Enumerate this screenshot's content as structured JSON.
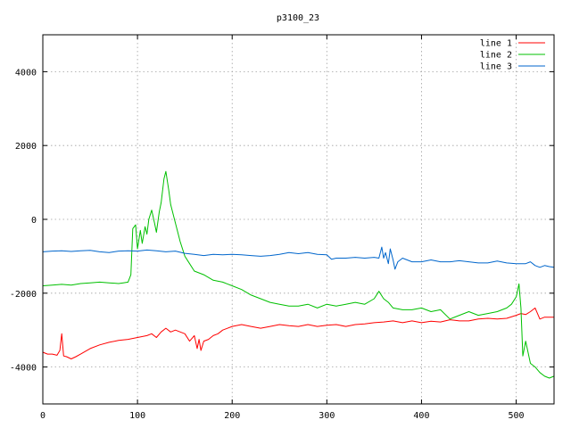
{
  "chart_data": {
    "type": "line",
    "title": "p3100_23",
    "xlabel": "",
    "ylabel": "",
    "xlim": [
      0,
      540
    ],
    "ylim": [
      -5000,
      5000
    ],
    "xticks": [
      0,
      100,
      200,
      300,
      400,
      500
    ],
    "yticks": [
      -4000,
      -2000,
      0,
      2000,
      4000
    ],
    "grid": true,
    "legend_position": "top-right",
    "series": [
      {
        "name": "line 1",
        "color": "#ff0000",
        "x": [
          0,
          5,
          10,
          15,
          18,
          20,
          22,
          25,
          30,
          35,
          40,
          50,
          60,
          70,
          80,
          90,
          100,
          110,
          115,
          120,
          125,
          130,
          135,
          140,
          150,
          155,
          160,
          163,
          165,
          167,
          170,
          175,
          180,
          185,
          190,
          200,
          210,
          220,
          230,
          240,
          250,
          260,
          270,
          280,
          290,
          300,
          310,
          320,
          330,
          340,
          350,
          360,
          370,
          380,
          390,
          400,
          410,
          420,
          430,
          440,
          450,
          460,
          470,
          480,
          490,
          500,
          505,
          510,
          515,
          520,
          525,
          530,
          540
        ],
        "y": [
          -3600,
          -3650,
          -3650,
          -3680,
          -3550,
          -3100,
          -3700,
          -3720,
          -3780,
          -3720,
          -3650,
          -3500,
          -3400,
          -3330,
          -3280,
          -3250,
          -3200,
          -3150,
          -3100,
          -3200,
          -3050,
          -2950,
          -3050,
          -3000,
          -3100,
          -3300,
          -3150,
          -3500,
          -3250,
          -3550,
          -3300,
          -3250,
          -3150,
          -3100,
          -3000,
          -2900,
          -2850,
          -2900,
          -2950,
          -2900,
          -2850,
          -2880,
          -2900,
          -2850,
          -2900,
          -2870,
          -2850,
          -2900,
          -2850,
          -2830,
          -2800,
          -2780,
          -2750,
          -2800,
          -2750,
          -2800,
          -2760,
          -2780,
          -2720,
          -2750,
          -2750,
          -2700,
          -2680,
          -2700,
          -2680,
          -2600,
          -2550,
          -2580,
          -2500,
          -2400,
          -2700,
          -2650,
          -2650
        ]
      },
      {
        "name": "line 2",
        "color": "#00c000",
        "x": [
          0,
          10,
          20,
          30,
          40,
          50,
          60,
          70,
          80,
          85,
          90,
          93,
          95,
          98,
          100,
          103,
          105,
          108,
          110,
          112,
          115,
          118,
          120,
          123,
          125,
          128,
          130,
          133,
          135,
          140,
          145,
          150,
          155,
          160,
          170,
          180,
          190,
          200,
          210,
          220,
          230,
          240,
          250,
          260,
          270,
          280,
          290,
          300,
          310,
          320,
          330,
          340,
          350,
          355,
          360,
          365,
          370,
          380,
          390,
          400,
          410,
          420,
          430,
          440,
          450,
          460,
          470,
          480,
          490,
          495,
          500,
          503,
          505,
          507,
          510,
          515,
          520,
          525,
          530,
          535,
          540
        ],
        "y": [
          -1800,
          -1780,
          -1760,
          -1780,
          -1740,
          -1720,
          -1700,
          -1720,
          -1740,
          -1720,
          -1700,
          -1500,
          -250,
          -150,
          -800,
          -300,
          -650,
          -200,
          -400,
          0,
          250,
          -100,
          -350,
          200,
          450,
          1100,
          1300,
          800,
          400,
          -100,
          -600,
          -1000,
          -1200,
          -1400,
          -1500,
          -1650,
          -1700,
          -1800,
          -1900,
          -2050,
          -2150,
          -2250,
          -2300,
          -2350,
          -2350,
          -2300,
          -2400,
          -2300,
          -2350,
          -2300,
          -2250,
          -2300,
          -2150,
          -1950,
          -2150,
          -2250,
          -2400,
          -2450,
          -2450,
          -2400,
          -2500,
          -2450,
          -2700,
          -2600,
          -2500,
          -2600,
          -2550,
          -2500,
          -2400,
          -2300,
          -2100,
          -1750,
          -2400,
          -3700,
          -3300,
          -3900,
          -4000,
          -4150,
          -4250,
          -4300,
          -4250
        ]
      },
      {
        "name": "line 3",
        "color": "#0066cc",
        "x": [
          0,
          10,
          20,
          30,
          40,
          50,
          60,
          70,
          80,
          90,
          100,
          110,
          120,
          130,
          140,
          150,
          160,
          170,
          180,
          190,
          200,
          210,
          220,
          230,
          240,
          250,
          260,
          270,
          280,
          290,
          300,
          305,
          310,
          320,
          330,
          340,
          350,
          355,
          358,
          360,
          362,
          365,
          367,
          370,
          372,
          375,
          380,
          390,
          400,
          410,
          420,
          430,
          440,
          450,
          460,
          470,
          480,
          490,
          500,
          510,
          515,
          520,
          525,
          530,
          535,
          540
        ],
        "y": [
          -880,
          -860,
          -850,
          -870,
          -850,
          -840,
          -880,
          -900,
          -860,
          -850,
          -860,
          -830,
          -850,
          -880,
          -860,
          -920,
          -950,
          -980,
          -950,
          -960,
          -950,
          -960,
          -980,
          -1000,
          -980,
          -950,
          -900,
          -930,
          -900,
          -950,
          -960,
          -1080,
          -1050,
          -1050,
          -1030,
          -1050,
          -1030,
          -1050,
          -750,
          -1050,
          -900,
          -1200,
          -800,
          -1100,
          -1350,
          -1150,
          -1050,
          -1150,
          -1150,
          -1100,
          -1150,
          -1150,
          -1120,
          -1150,
          -1180,
          -1180,
          -1130,
          -1180,
          -1200,
          -1200,
          -1150,
          -1250,
          -1300,
          -1250,
          -1280,
          -1300
        ]
      }
    ]
  }
}
